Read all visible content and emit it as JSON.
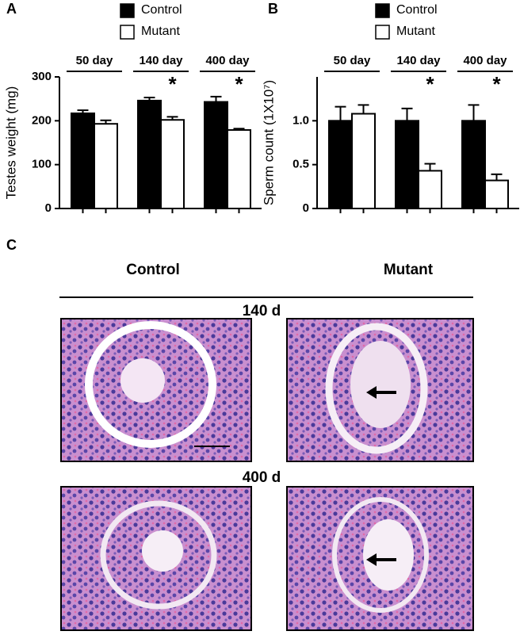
{
  "chart_data": [
    {
      "type": "bar",
      "panel": "A",
      "ylabel": "Testes weight (mg)",
      "categories": [
        "50 day",
        "140 day",
        "400 day"
      ],
      "series": [
        {
          "name": "Control",
          "color": "#000000",
          "values": [
            217,
            246,
            243
          ],
          "errors": [
            7,
            7,
            12
          ]
        },
        {
          "name": "Mutant",
          "color": "#ffffff",
          "values": [
            193,
            202,
            179
          ],
          "errors": [
            8,
            7,
            3
          ]
        }
      ],
      "markers": [
        null,
        "*",
        "*"
      ],
      "ylim": [
        0,
        300
      ],
      "yticks": [
        0,
        100,
        200,
        300
      ]
    },
    {
      "type": "bar",
      "panel": "B",
      "ylabel": "Sperm count (1X10⁷)",
      "categories": [
        "50 day",
        "140 day",
        "400 day"
      ],
      "series": [
        {
          "name": "Control",
          "color": "#000000",
          "values": [
            1.0,
            1.0,
            1.0
          ],
          "errors": [
            0.16,
            0.14,
            0.18
          ]
        },
        {
          "name": "Mutant",
          "color": "#ffffff",
          "values": [
            1.08,
            0.43,
            0.32
          ],
          "errors": [
            0.1,
            0.08,
            0.07
          ]
        }
      ],
      "markers": [
        null,
        "*",
        "*"
      ],
      "ylim": [
        0,
        1.5
      ],
      "yticks": [
        0,
        0.5,
        {
          "value": 1,
          "label": "1.0"
        }
      ]
    }
  ],
  "panel_c": {
    "label": "C",
    "columns": [
      "Control",
      "Mutant"
    ],
    "rows": [
      "140 d",
      "400 d"
    ]
  }
}
